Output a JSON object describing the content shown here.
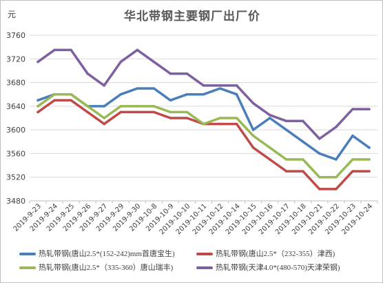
{
  "chart_data": {
    "type": "line",
    "title": "华北带钢主要钢厂出厂价",
    "ylabel": "元",
    "xlabel": "",
    "ylim": [
      3480,
      3760
    ],
    "yticks": [
      3480,
      3520,
      3560,
      3600,
      3640,
      3680,
      3720,
      3760
    ],
    "grid": true,
    "legend_position": "bottom",
    "categories": [
      "2019-9-23",
      "2019-9-24",
      "2019-9-25",
      "2019-9-26",
      "2019-9-27",
      "2019-9-29",
      "2019-9-30",
      "2019-10-8",
      "2019-10-9",
      "2019-10-10",
      "2019-10-11",
      "2019-10-12",
      "2019-10-14",
      "2019-10-15",
      "2019-10-16",
      "2019-10-17",
      "2019-10-18",
      "2019-10-21",
      "2019-10-22",
      "2019-10-23",
      "2019-10-24"
    ],
    "series": [
      {
        "name": "热轧带钢(唐山2.5*(152-242)mm首唐宝生)",
        "color": "#4a7ebb",
        "values": [
          3650,
          3660,
          3660,
          3640,
          3640,
          3660,
          3670,
          3670,
          3650,
          3660,
          3660,
          3670,
          3660,
          3600,
          3620,
          3600,
          3580,
          3560,
          3550,
          3590,
          3570
        ]
      },
      {
        "name": "热轧带钢(唐山2.5*（232-355）津西)",
        "color": "#be4b48",
        "values": [
          3630,
          3650,
          3650,
          3630,
          3610,
          3630,
          3630,
          3630,
          3620,
          3620,
          3610,
          3610,
          3610,
          3570,
          3550,
          3530,
          3530,
          3500,
          3500,
          3530,
          3530
        ]
      },
      {
        "name": "热轧带钢(唐山2.5*（335-360）唐山瑞丰)",
        "color": "#98b954",
        "values": [
          3640,
          3660,
          3660,
          3640,
          3620,
          3640,
          3640,
          3640,
          3630,
          3630,
          3610,
          3620,
          3620,
          3590,
          3570,
          3550,
          3550,
          3520,
          3520,
          3550,
          3550
        ]
      },
      {
        "name": "热轧带钢(天津4.0*(480-570)天津荣钢)",
        "color": "#7d60a0",
        "values": [
          3715,
          3735,
          3735,
          3695,
          3675,
          3715,
          3735,
          3715,
          3695,
          3695,
          3675,
          3675,
          3675,
          3645,
          3625,
          3615,
          3615,
          3585,
          3605,
          3635,
          3635
        ]
      }
    ]
  }
}
